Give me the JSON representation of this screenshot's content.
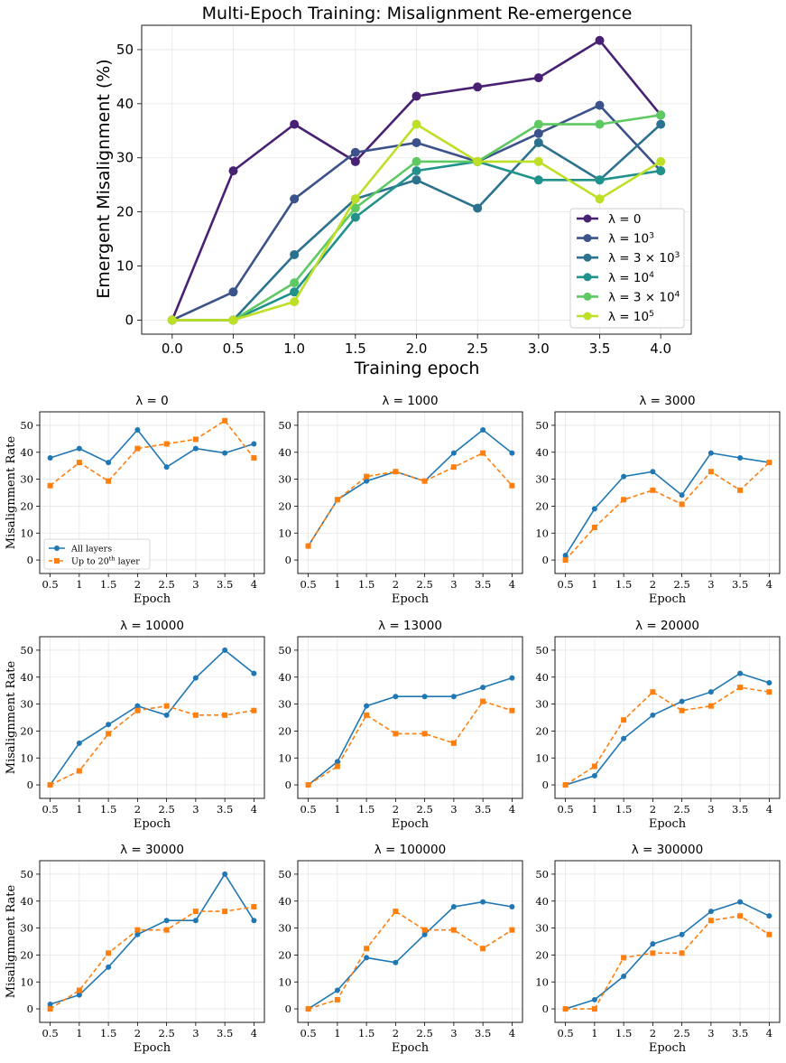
{
  "main_title": "Multi-Epoch Training: Misalignment Re-emergence",
  "main_xlabel": "Training epoch",
  "main_ylabel": "Emergent Misalignment (%)",
  "sub_xlabel": "Epoch",
  "sub_ylabel": "Misalignment Rate",
  "sub_legend": [
    "All layers",
    "Up to 20th layer"
  ],
  "colors": {
    "lambda": [
      "#482173",
      "#3b528b",
      "#2c728e",
      "#21918c",
      "#5ec962",
      "#bddf26"
    ],
    "all_layers": "#1f77b4",
    "up_to_20": "#ff7f0e"
  },
  "chart_data": [
    {
      "type": "line",
      "title": "Multi-Epoch Training: Misalignment Re-emergence",
      "xlabel": "Training epoch",
      "ylabel": "Emergent Misalignment (%)",
      "x": [
        0,
        0.5,
        1,
        1.5,
        2,
        2.5,
        3,
        3.5,
        4
      ],
      "xlim": [
        -0.25,
        4.25
      ],
      "ylim": [
        -2.6,
        54.5
      ],
      "xticks": [
        "0.0",
        "0.5",
        "1.0",
        "1.5",
        "2.0",
        "2.5",
        "3.0",
        "3.5",
        "4.0"
      ],
      "yticks": [
        0,
        10,
        20,
        30,
        40,
        50
      ],
      "grid": true,
      "legend_position": "lower-right",
      "series": [
        {
          "name": "λ = 0",
          "values": [
            0,
            27.6,
            36.2,
            29.3,
            41.4,
            43.1,
            44.8,
            51.7,
            37.9
          ]
        },
        {
          "name": "λ = 10³",
          "values": [
            0,
            5.2,
            22.4,
            31.0,
            32.8,
            29.3,
            34.5,
            39.7,
            27.6
          ]
        },
        {
          "name": "λ = 3 × 10³",
          "values": [
            0,
            0,
            12.1,
            22.4,
            25.9,
            20.7,
            32.8,
            25.9,
            36.2
          ]
        },
        {
          "name": "λ = 10⁴",
          "values": [
            0,
            0,
            5.2,
            19.0,
            27.6,
            29.3,
            25.9,
            25.9,
            27.6
          ]
        },
        {
          "name": "λ = 3 × 10⁴",
          "values": [
            0,
            0,
            6.9,
            20.7,
            29.3,
            29.3,
            36.2,
            36.2,
            37.9
          ]
        },
        {
          "name": "λ = 10⁵",
          "values": [
            0,
            0,
            3.4,
            22.4,
            36.2,
            29.3,
            29.3,
            22.4,
            29.3
          ]
        }
      ]
    },
    {
      "type": "line",
      "title": "λ = 0",
      "x": [
        0.5,
        1,
        1.5,
        2,
        2.5,
        3,
        3.5,
        4
      ],
      "xlabel": "Epoch",
      "ylabel": "Misalignment Rate",
      "ylim": [
        -5,
        55
      ],
      "legend_position": "lower-left",
      "series": [
        {
          "name": "All layers",
          "values": [
            37.9,
            41.4,
            36.2,
            48.3,
            34.5,
            41.4,
            39.7,
            43.1
          ]
        },
        {
          "name": "Up to 20th layer",
          "values": [
            27.6,
            36.2,
            29.3,
            41.4,
            43.1,
            44.8,
            51.7,
            37.9
          ]
        }
      ]
    },
    {
      "type": "line",
      "title": "λ = 1000",
      "x": [
        0.5,
        1,
        1.5,
        2,
        2.5,
        3,
        3.5,
        4
      ],
      "xlabel": "Epoch",
      "ylim": [
        -5,
        55
      ],
      "series": [
        {
          "name": "All layers",
          "values": [
            5.2,
            22.4,
            29.3,
            32.8,
            29.3,
            39.7,
            48.3,
            39.7
          ]
        },
        {
          "name": "Up to 20th layer",
          "values": [
            5.2,
            22.4,
            31.0,
            32.8,
            29.3,
            34.5,
            39.7,
            27.6
          ]
        }
      ]
    },
    {
      "type": "line",
      "title": "λ = 3000",
      "x": [
        0.5,
        1,
        1.5,
        2,
        2.5,
        3,
        3.5,
        4
      ],
      "xlabel": "Epoch",
      "ylim": [
        -5,
        55
      ],
      "series": [
        {
          "name": "All layers",
          "values": [
            1.7,
            19.0,
            31.0,
            32.8,
            24.1,
            39.7,
            37.9,
            36.2
          ]
        },
        {
          "name": "Up to 20th layer",
          "values": [
            0,
            12.1,
            22.4,
            25.9,
            20.7,
            32.8,
            25.9,
            36.2
          ]
        }
      ]
    },
    {
      "type": "line",
      "title": "λ = 10000",
      "x": [
        0.5,
        1,
        1.5,
        2,
        2.5,
        3,
        3.5,
        4
      ],
      "xlabel": "Epoch",
      "ylabel": "Misalignment Rate",
      "ylim": [
        -5,
        55
      ],
      "series": [
        {
          "name": "All layers",
          "values": [
            0,
            15.5,
            22.4,
            29.3,
            25.9,
            39.7,
            50.0,
            41.4
          ]
        },
        {
          "name": "Up to 20th layer",
          "values": [
            0,
            5.2,
            19.0,
            27.6,
            29.3,
            25.9,
            25.9,
            27.6
          ]
        }
      ]
    },
    {
      "type": "line",
      "title": "λ = 13000",
      "x": [
        0.5,
        1,
        1.5,
        2,
        2.5,
        3,
        3.5,
        4
      ],
      "xlabel": "Epoch",
      "ylim": [
        -5,
        55
      ],
      "series": [
        {
          "name": "All layers",
          "values": [
            0,
            8.6,
            29.3,
            32.8,
            32.8,
            32.8,
            36.2,
            39.7
          ]
        },
        {
          "name": "Up to 20th layer",
          "values": [
            0,
            6.9,
            25.9,
            19.0,
            19.0,
            15.5,
            31.0,
            27.6
          ]
        }
      ]
    },
    {
      "type": "line",
      "title": "λ = 20000",
      "x": [
        0.5,
        1,
        1.5,
        2,
        2.5,
        3,
        3.5,
        4
      ],
      "xlabel": "Epoch",
      "ylim": [
        -5,
        55
      ],
      "series": [
        {
          "name": "All layers",
          "values": [
            0,
            3.4,
            17.2,
            25.9,
            31.0,
            34.5,
            41.4,
            37.9
          ]
        },
        {
          "name": "Up to 20th layer",
          "values": [
            0,
            6.9,
            24.1,
            34.5,
            27.6,
            29.3,
            36.2,
            34.5
          ]
        }
      ]
    },
    {
      "type": "line",
      "title": "λ = 30000",
      "x": [
        0.5,
        1,
        1.5,
        2,
        2.5,
        3,
        3.5,
        4
      ],
      "xlabel": "Epoch",
      "ylabel": "Misalignment Rate",
      "ylim": [
        -5,
        55
      ],
      "series": [
        {
          "name": "All layers",
          "values": [
            1.7,
            5.2,
            15.5,
            27.6,
            32.8,
            32.8,
            50.0,
            32.8
          ]
        },
        {
          "name": "Up to 20th layer",
          "values": [
            0,
            6.9,
            20.7,
            29.3,
            29.3,
            36.2,
            36.2,
            37.9
          ]
        }
      ]
    },
    {
      "type": "line",
      "title": "λ = 100000",
      "x": [
        0.5,
        1,
        1.5,
        2,
        2.5,
        3,
        3.5,
        4
      ],
      "xlabel": "Epoch",
      "ylim": [
        -5,
        55
      ],
      "series": [
        {
          "name": "All layers",
          "values": [
            0,
            6.9,
            19.0,
            17.2,
            27.6,
            37.9,
            39.7,
            37.9
          ]
        },
        {
          "name": "Up to 20th layer",
          "values": [
            0,
            3.4,
            22.4,
            36.2,
            29.3,
            29.3,
            22.4,
            29.3
          ]
        }
      ]
    },
    {
      "type": "line",
      "title": "λ = 300000",
      "x": [
        0.5,
        1,
        1.5,
        2,
        2.5,
        3,
        3.5,
        4
      ],
      "xlabel": "Epoch",
      "ylim": [
        -5,
        55
      ],
      "series": [
        {
          "name": "All layers",
          "values": [
            0,
            3.4,
            12.1,
            24.1,
            27.6,
            36.2,
            39.7,
            34.5
          ]
        },
        {
          "name": "Up to 20th layer",
          "values": [
            0,
            0,
            19.0,
            20.7,
            20.7,
            32.8,
            34.5,
            27.6
          ]
        }
      ]
    }
  ]
}
